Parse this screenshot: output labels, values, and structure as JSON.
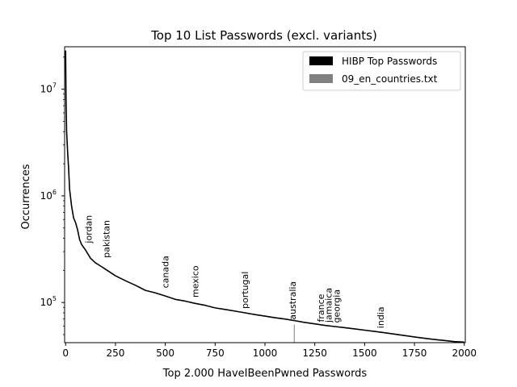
{
  "chart_data": {
    "type": "line",
    "title": "Top 10 List Passwords (excl. variants)",
    "xlabel": "Top 2.000 HaveIBeenPwned Passwords",
    "ylabel": "Occurrences",
    "xlim": [
      -5,
      2005
    ],
    "ylim": [
      42000,
      25000000
    ],
    "yscale": "log",
    "grid": false,
    "legend_position": "top-right",
    "x_ticks": [
      0,
      250,
      500,
      750,
      1000,
      1250,
      1500,
      1750,
      2000
    ],
    "x_tick_labels": [
      "0",
      "250",
      "500",
      "750",
      "1000",
      "1250",
      "1500",
      "1750",
      "2000"
    ],
    "y_ticks": [
      100000,
      1000000,
      10000000
    ],
    "y_tick_labels": [
      {
        "base": "10",
        "exp": "5"
      },
      {
        "base": "10",
        "exp": "6"
      },
      {
        "base": "10",
        "exp": "7"
      }
    ],
    "series": [
      {
        "name": "HIBP Top Passwords",
        "color": "#000000",
        "x": [
          0,
          2,
          5,
          10,
          15,
          20,
          30,
          40,
          50,
          60,
          70,
          80,
          100,
          125,
          150,
          175,
          200,
          250,
          300,
          350,
          400,
          450,
          500,
          550,
          600,
          650,
          700,
          750,
          800,
          850,
          900,
          950,
          1000,
          1050,
          1100,
          1150,
          1200,
          1250,
          1300,
          1350,
          1400,
          1450,
          1500,
          1550,
          1600,
          1650,
          1700,
          1750,
          1800,
          1850,
          1900,
          1950,
          2000
        ],
        "y": [
          23000000,
          8000000,
          4000000,
          2600000,
          1800000,
          1150000,
          800000,
          620000,
          560000,
          480000,
          390000,
          350000,
          310000,
          260000,
          235000,
          220000,
          205000,
          178000,
          160000,
          145000,
          130000,
          123000,
          115000,
          107000,
          103000,
          98000,
          94000,
          89000,
          86000,
          83000,
          80000,
          77000,
          74500,
          72000,
          70000,
          67500,
          65000,
          63000,
          61000,
          59500,
          58000,
          56500,
          55000,
          53500,
          52000,
          50500,
          49000,
          47500,
          46200,
          45000,
          44000,
          43000,
          42500
        ]
      },
      {
        "name": "09_en_countries.txt",
        "color": "#808080",
        "x": [
          1147
        ],
        "y": [
          62000
        ]
      }
    ],
    "annotations": [
      {
        "text": "jordan",
        "x": 130,
        "y": 330000
      },
      {
        "text": "pakistan",
        "x": 220,
        "y": 240000
      },
      {
        "text": "canada",
        "x": 515,
        "y": 125000
      },
      {
        "text": "mexico",
        "x": 665,
        "y": 102000
      },
      {
        "text": "portugal",
        "x": 915,
        "y": 80000
      },
      {
        "text": "australia",
        "x": 1155,
        "y": 63000
      },
      {
        "text": "france",
        "x": 1295,
        "y": 60000
      },
      {
        "text": "jamaica",
        "x": 1335,
        "y": 59500
      },
      {
        "text": "georgia",
        "x": 1375,
        "y": 59000
      },
      {
        "text": "india",
        "x": 1595,
        "y": 52500
      }
    ]
  }
}
